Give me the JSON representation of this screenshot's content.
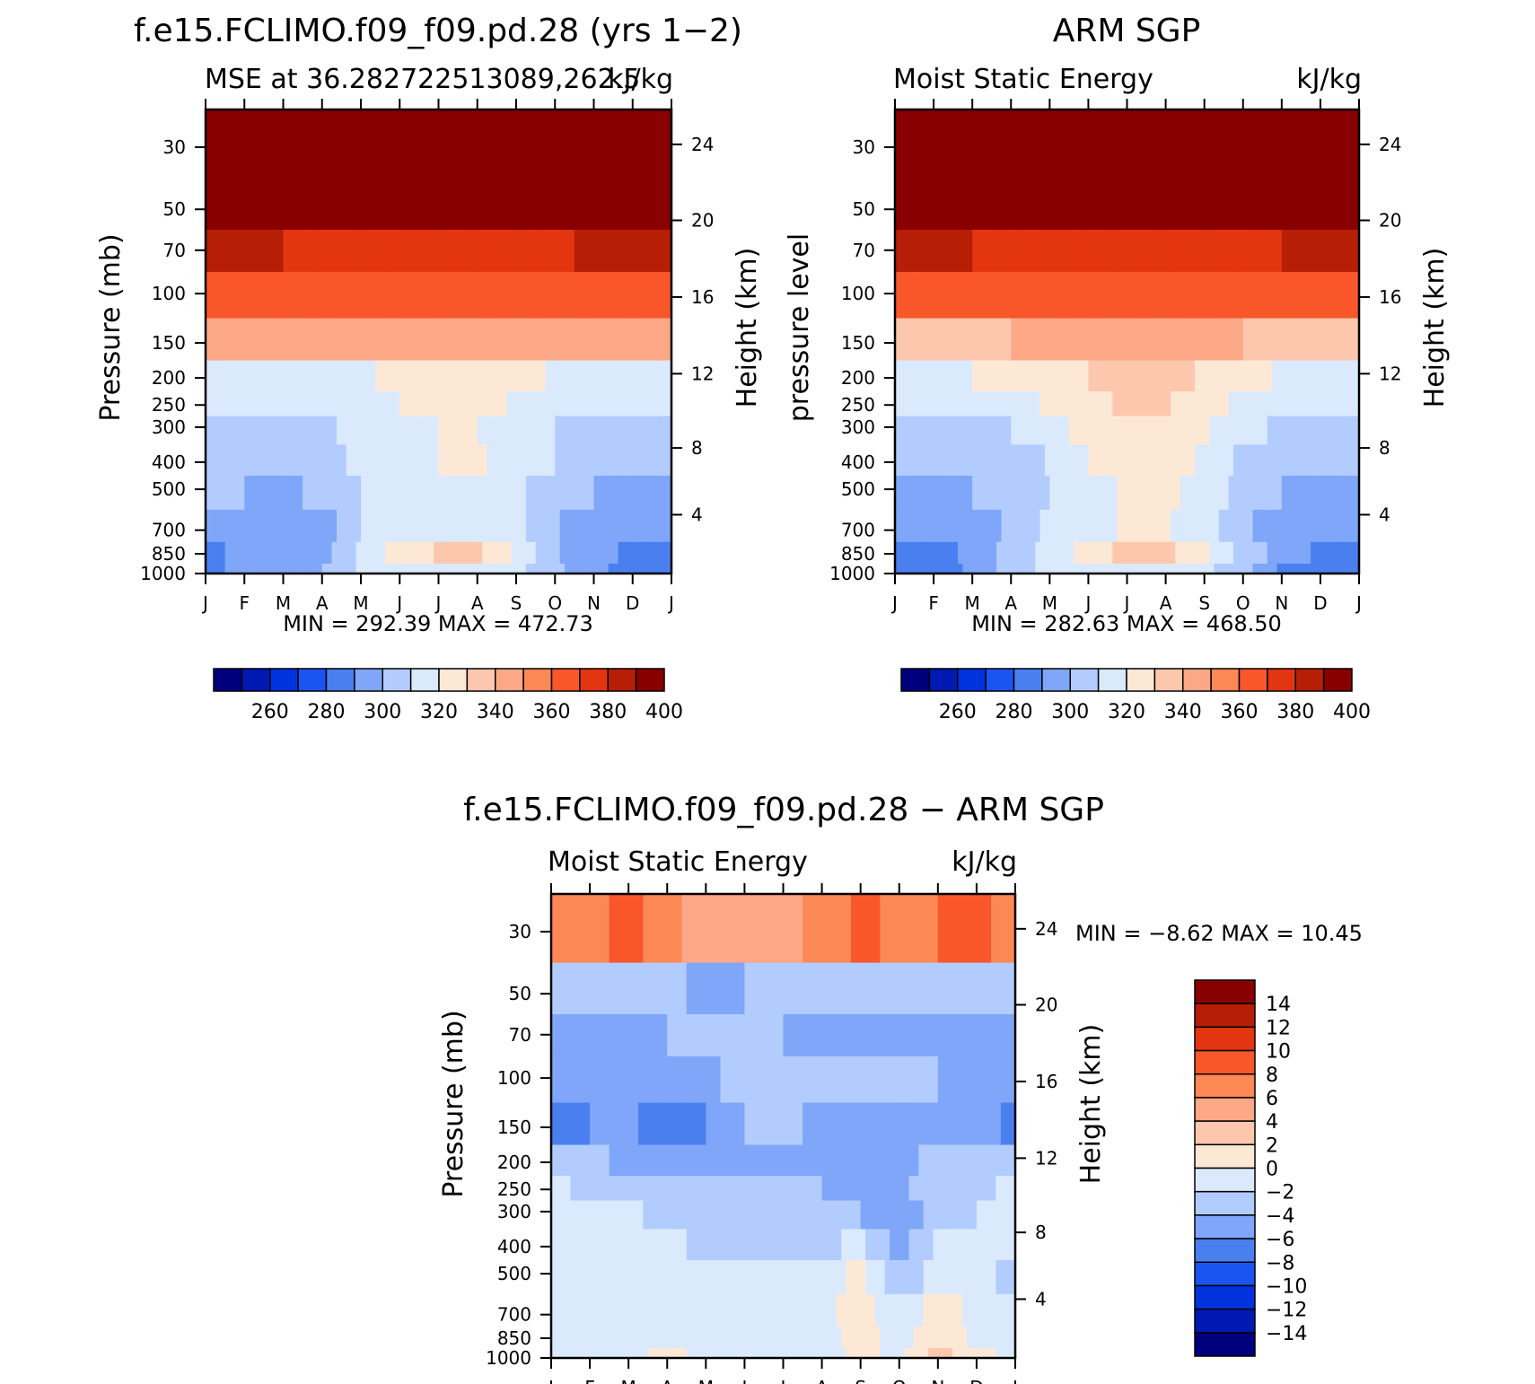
{
  "months": [
    "J",
    "F",
    "M",
    "A",
    "M",
    "J",
    "J",
    "A",
    "S",
    "O",
    "N",
    "D",
    "J"
  ],
  "pressure_ticks": [
    30,
    50,
    70,
    100,
    150,
    200,
    250,
    300,
    400,
    500,
    700,
    850,
    1000
  ],
  "height_ticks": [
    4,
    8,
    12,
    16,
    20,
    24
  ],
  "colors": {
    "levels16": [
      "#00007f",
      "#0019b2",
      "#0033dd",
      "#1a55f2",
      "#4a7ff0",
      "#7fa6f8",
      "#b3ccff",
      "#daeafc",
      "#fde8d6",
      "#fdc7ae",
      "#fca886",
      "#fc8856",
      "#f9562a",
      "#e43511",
      "#b71e06",
      "#880000"
    ]
  },
  "panels": [
    {
      "title": "f.e15.FCLIMO.f09_f09.pd.28 (yrs 1−2)",
      "left_label": "MSE at 36.282722513089,262.5",
      "right_label": "kJ/kg",
      "y_label": "Pressure (mb)",
      "y2_label": "Height (km)",
      "stats": "MIN = 292.39 MAX = 472.73",
      "colorbar_labels": [
        "260",
        "280",
        "300",
        "320",
        "340",
        "360",
        "380",
        "400"
      ]
    },
    {
      "title": "ARM SGP",
      "left_label": "Moist Static Energy",
      "right_label": "kJ/kg",
      "y_label": "pressure level",
      "y2_label": "Height (km)",
      "stats": "MIN = 282.63 MAX = 468.50",
      "colorbar_labels": [
        "260",
        "280",
        "300",
        "320",
        "340",
        "360",
        "380",
        "400"
      ]
    },
    {
      "title": "f.e15.FCLIMO.f09_f09.pd.28 − ARM SGP",
      "left_label": "Moist Static Energy",
      "right_label": "kJ/kg",
      "y_label": "Pressure (mb)",
      "y2_label": "Height (km)",
      "stats": "MIN =   −8.62 MAX =   10.45",
      "colorbar_labels": [
        "14",
        "12",
        "10",
        "8",
        "6",
        "4",
        "2",
        "0",
        "−2",
        "−4",
        "−6",
        "−8",
        "−10",
        "−12",
        "−14"
      ]
    }
  ],
  "chart_data": [
    {
      "type": "heatmap",
      "title": "f.e15.FCLIMO.f09_f09.pd.28 (yrs 1−2)",
      "subtitle": "MSE at 36.282722513089,262.5",
      "units": "kJ/kg",
      "xlabel": "",
      "ylabel": "Pressure (mb)",
      "y2label": "Height (km)",
      "y_scale": "log",
      "y_reversed": true,
      "x": [
        "J",
        "F",
        "M",
        "A",
        "M",
        "J",
        "J",
        "A",
        "S",
        "O",
        "N",
        "D",
        "J"
      ],
      "y": [
        30,
        50,
        70,
        100,
        150,
        200,
        250,
        300,
        400,
        500,
        700,
        850,
        1000
      ],
      "min": 292.39,
      "max": 472.73,
      "contour_levels": [
        250,
        260,
        270,
        280,
        290,
        300,
        310,
        320,
        330,
        340,
        350,
        360,
        370,
        380,
        390,
        400,
        410
      ],
      "values": [
        [
          470,
          470,
          470,
          470,
          470,
          470,
          470,
          470,
          470,
          470,
          470,
          470,
          470
        ],
        [
          408,
          405,
          403,
          402,
          400,
          400,
          400,
          400,
          401,
          403,
          405,
          407,
          408
        ],
        [
          393,
          391,
          390,
          389,
          388,
          387,
          387,
          387,
          388,
          389,
          391,
          392,
          393
        ],
        [
          379,
          377,
          375,
          374,
          373,
          372,
          372,
          372,
          372,
          373,
          375,
          377,
          379
        ],
        [
          352,
          351,
          353,
          356,
          358,
          359,
          360,
          359,
          357,
          356,
          354,
          353,
          352
        ],
        [
          326,
          327,
          326,
          325,
          328,
          333,
          337,
          336,
          333,
          329,
          327,
          326,
          326
        ],
        [
          322,
          323,
          323,
          322,
          324,
          330,
          335,
          334,
          329,
          324,
          322,
          322,
          322
        ],
        [
          315,
          317,
          313,
          318,
          323,
          327,
          330,
          330,
          325,
          320,
          317,
          315,
          315
        ],
        [
          314,
          315,
          311,
          316,
          323,
          327,
          330,
          331,
          326,
          320,
          315,
          313,
          314
        ],
        [
          310,
          310,
          308,
          312,
          320,
          324,
          326,
          327,
          323,
          313,
          310,
          309,
          310
        ],
        [
          305,
          304,
          302,
          305,
          320,
          326,
          329,
          330,
          324,
          311,
          304,
          303,
          305
        ],
        [
          298,
          302,
          300,
          306,
          323,
          335,
          341,
          342,
          328,
          311,
          303,
          298,
          298
        ],
        [
          296,
          304,
          302,
          310,
          322,
          322,
          322,
          322,
          322,
          312,
          302,
          296,
          296
        ]
      ]
    },
    {
      "type": "heatmap",
      "title": "ARM SGP",
      "subtitle": "Moist Static Energy",
      "units": "kJ/kg",
      "xlabel": "",
      "ylabel": "pressure level",
      "y2label": "Height (km)",
      "y_scale": "log",
      "y_reversed": true,
      "x": [
        "J",
        "F",
        "M",
        "A",
        "M",
        "J",
        "J",
        "A",
        "S",
        "O",
        "N",
        "D",
        "J"
      ],
      "y": [
        30,
        50,
        70,
        100,
        150,
        200,
        250,
        300,
        400,
        500,
        700,
        850,
        1000
      ],
      "min": 282.63,
      "max": 468.5,
      "contour_levels": [
        250,
        260,
        270,
        280,
        290,
        300,
        310,
        320,
        330,
        340,
        350,
        360,
        370,
        380,
        390,
        400,
        410
      ],
      "values": [
        [
          466,
          466,
          466,
          466,
          466,
          466,
          466,
          466,
          466,
          466,
          466,
          466,
          466
        ],
        [
          412,
          411,
          410,
          409,
          408,
          407,
          406,
          406,
          407,
          408,
          409,
          410,
          412
        ],
        [
          393,
          392,
          390,
          389,
          388,
          387,
          386,
          386,
          387,
          388,
          390,
          392,
          393
        ],
        [
          376,
          375,
          374,
          373,
          372,
          372,
          372,
          372,
          372,
          373,
          374,
          375,
          376
        ],
        [
          346,
          347,
          348,
          350,
          354,
          356,
          357,
          356,
          353,
          350,
          348,
          347,
          346
        ],
        [
          328,
          329,
          330,
          331,
          335,
          340,
          345,
          343,
          339,
          333,
          329,
          328,
          328
        ],
        [
          324,
          325,
          326,
          327,
          331,
          336,
          343,
          341,
          335,
          327,
          324,
          324,
          324
        ],
        [
          320,
          319,
          319,
          320,
          327,
          333,
          338,
          337,
          331,
          323,
          318,
          318,
          320
        ],
        [
          315,
          313,
          313,
          315,
          321,
          330,
          335,
          336,
          328,
          318,
          312,
          312,
          315
        ],
        [
          309,
          308,
          310,
          315,
          320,
          325,
          332,
          333,
          326,
          316,
          310,
          309,
          309
        ],
        [
          302,
          300,
          303,
          312,
          322,
          326,
          331,
          331,
          324,
          312,
          305,
          302,
          302
        ],
        [
          296,
          296,
          302,
          314,
          323,
          334,
          344,
          343,
          333,
          316,
          306,
          298,
          296
        ],
        [
          292,
          294,
          302,
          316,
          322,
          322,
          322,
          322,
          322,
          314,
          298,
          292,
          292
        ]
      ]
    },
    {
      "type": "heatmap",
      "title": "f.e15.FCLIMO.f09_f09.pd.28 − ARM SGP",
      "subtitle": "Moist Static Energy",
      "units": "kJ/kg",
      "xlabel": "",
      "ylabel": "Pressure (mb)",
      "y2label": "Height (km)",
      "y_scale": "log",
      "y_reversed": true,
      "x": [
        "J",
        "F",
        "M",
        "A",
        "M",
        "J",
        "J",
        "A",
        "S",
        "O",
        "N",
        "D",
        "J"
      ],
      "y": [
        30,
        50,
        70,
        100,
        150,
        200,
        250,
        300,
        400,
        500,
        700,
        850,
        1000
      ],
      "min": -8.62,
      "max": 10.45,
      "contour_levels": [
        -16,
        -14,
        -12,
        -10,
        -8,
        -6,
        -4,
        -2,
        0,
        2,
        4,
        6,
        8,
        10,
        12,
        14,
        16
      ],
      "values": [
        [
          7.0,
          7.5,
          8.5,
          7.0,
          4.0,
          4.5,
          5.5,
          6.5,
          8.5,
          7.5,
          8.0,
          8.5,
          7.0
        ],
        [
          -3.0,
          -3.5,
          -4.0,
          -3.5,
          -4.5,
          -4.0,
          -3.5,
          -3.5,
          -3.0,
          -3.0,
          -3.5,
          -3.5,
          -3.0
        ],
        [
          -4.5,
          -4.5,
          -4.5,
          -4.0,
          -4.0,
          -4.0,
          -4.0,
          -4.5,
          -5.0,
          -4.5,
          -4.5,
          -4.5,
          -4.5
        ],
        [
          -4.5,
          -4.5,
          -5.0,
          -5.5,
          -4.5,
          -3.0,
          -2.5,
          -2.5,
          -4.0,
          -3.5,
          -4.0,
          -4.5,
          -4.5
        ],
        [
          -6.5,
          -6.0,
          -5.5,
          -7.5,
          -6.0,
          -4.0,
          -3.5,
          -4.5,
          -5.0,
          -5.5,
          -4.5,
          -5.0,
          -6.5
        ],
        [
          -3.0,
          -3.5,
          -4.5,
          -5.0,
          -5.0,
          -4.5,
          -4.0,
          -4.5,
          -5.0,
          -5.0,
          -3.0,
          -3.5,
          -3.0
        ],
        [
          -1.5,
          -2.5,
          -3.0,
          -4.0,
          -3.5,
          -3.5,
          -3.0,
          -4.0,
          -4.5,
          -4.5,
          -2.5,
          -2.5,
          -1.5
        ],
        [
          -1.0,
          -1.5,
          -1.5,
          -3.0,
          -3.5,
          -3.0,
          -3.0,
          -3.5,
          -4.0,
          -5.5,
          -3.0,
          -2.0,
          -1.0
        ],
        [
          -1.5,
          -1.0,
          -1.0,
          -1.5,
          -2.5,
          -2.5,
          -3.0,
          -2.5,
          -1.5,
          -5.0,
          -1.5,
          -1.5,
          -1.5
        ],
        [
          -1.5,
          -0.5,
          -0.5,
          -1.0,
          -1.5,
          -1.5,
          -1.5,
          -1.0,
          0.5,
          -3.5,
          -1.0,
          -1.5,
          -2.5
        ],
        [
          -0.5,
          -0.5,
          -1.5,
          -0.5,
          -0.5,
          -1.0,
          -0.5,
          -1.0,
          1.5,
          -2.0,
          1.0,
          -0.5,
          -1.5
        ],
        [
          -0.5,
          -0.5,
          -0.5,
          -0.5,
          -0.5,
          -0.5,
          -0.5,
          -1.0,
          1.0,
          -1.0,
          2.0,
          -0.5,
          -0.5
        ],
        [
          -0.5,
          -0.5,
          -0.5,
          0.5,
          -0.5,
          -0.5,
          -0.5,
          -1.0,
          0.5,
          -0.5,
          3.0,
          0.5,
          -0.5
        ]
      ]
    }
  ]
}
